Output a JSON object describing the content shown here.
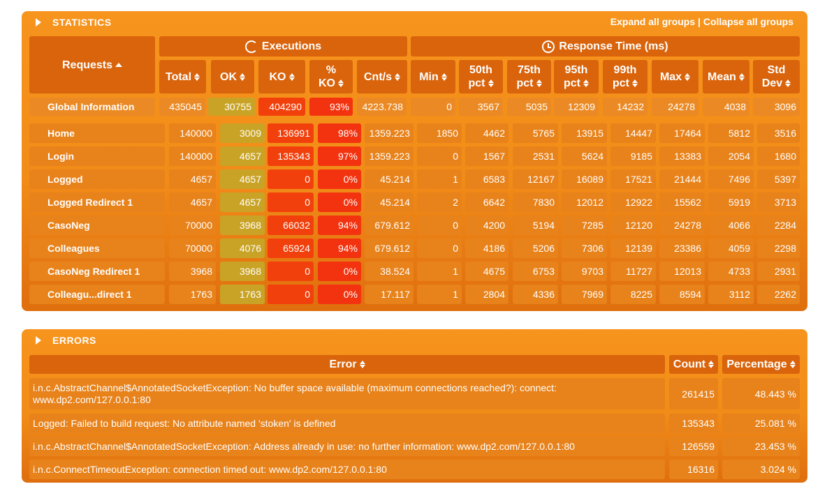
{
  "statistics": {
    "title": "STATISTICS",
    "expand_all": "Expand all groups",
    "separator": "|",
    "collapse_all": "Collapse all groups",
    "requests_header": "Requests",
    "executions_header": "Executions",
    "response_time_header": "Response Time (ms)",
    "columns": {
      "total": "Total",
      "ok": "OK",
      "ko": "KO",
      "pct_ko_1": "%",
      "pct_ko_2": "KO",
      "cnt": "Cnt/s",
      "min": "Min",
      "p50_1": "50th",
      "p50_2": "pct",
      "p75_1": "75th",
      "p75_2": "pct",
      "p95_1": "95th",
      "p95_2": "pct",
      "p99_1": "99th",
      "p99_2": "pct",
      "max": "Max",
      "mean": "Mean",
      "std_1": "Std",
      "std_2": "Dev"
    },
    "global": {
      "name": "Global Information",
      "total": "435045",
      "ok": "30755",
      "ko": "404290",
      "pct_ko": "93%",
      "cnt": "4223.738",
      "min": "0",
      "p50": "3567",
      "p75": "5035",
      "p95": "12309",
      "p99": "14232",
      "max": "24278",
      "mean": "4038",
      "std": "3096"
    },
    "rows": [
      {
        "name": "Home",
        "total": "140000",
        "ok": "3009",
        "ko": "136991",
        "pct_ko": "98%",
        "cnt": "1359.223",
        "min": "1850",
        "p50": "4462",
        "p75": "5765",
        "p95": "13915",
        "p99": "14447",
        "max": "17464",
        "mean": "5812",
        "std": "3516"
      },
      {
        "name": "Login",
        "total": "140000",
        "ok": "4657",
        "ko": "135343",
        "pct_ko": "97%",
        "cnt": "1359.223",
        "min": "0",
        "p50": "1567",
        "p75": "2531",
        "p95": "5624",
        "p99": "9185",
        "max": "13383",
        "mean": "2054",
        "std": "1680"
      },
      {
        "name": "Logged",
        "total": "4657",
        "ok": "4657",
        "ko": "0",
        "pct_ko": "0%",
        "cnt": "45.214",
        "min": "1",
        "p50": "6583",
        "p75": "12167",
        "p95": "16089",
        "p99": "17521",
        "max": "21444",
        "mean": "7496",
        "std": "5397"
      },
      {
        "name": "Logged Redirect 1",
        "total": "4657",
        "ok": "4657",
        "ko": "0",
        "pct_ko": "0%",
        "cnt": "45.214",
        "min": "2",
        "p50": "6642",
        "p75": "7830",
        "p95": "12012",
        "p99": "12922",
        "max": "15562",
        "mean": "5919",
        "std": "3713"
      },
      {
        "name": "CasoNeg",
        "total": "70000",
        "ok": "3968",
        "ko": "66032",
        "pct_ko": "94%",
        "cnt": "679.612",
        "min": "0",
        "p50": "4200",
        "p75": "5194",
        "p95": "7285",
        "p99": "12120",
        "max": "24278",
        "mean": "4066",
        "std": "2284"
      },
      {
        "name": "Colleagues",
        "total": "70000",
        "ok": "4076",
        "ko": "65924",
        "pct_ko": "94%",
        "cnt": "679.612",
        "min": "0",
        "p50": "4186",
        "p75": "5206",
        "p95": "7306",
        "p99": "12139",
        "max": "23386",
        "mean": "4059",
        "std": "2298"
      },
      {
        "name": "CasoNeg Redirect 1",
        "total": "3968",
        "ok": "3968",
        "ko": "0",
        "pct_ko": "0%",
        "cnt": "38.524",
        "min": "1",
        "p50": "4675",
        "p75": "6753",
        "p95": "9703",
        "p99": "11727",
        "max": "12013",
        "mean": "4733",
        "std": "2931"
      },
      {
        "name": "Colleagu...direct 1",
        "total": "1763",
        "ok": "1763",
        "ko": "0",
        "pct_ko": "0%",
        "cnt": "17.117",
        "min": "1",
        "p50": "2804",
        "p75": "4336",
        "p95": "7969",
        "p99": "8225",
        "max": "8594",
        "mean": "3112",
        "std": "2262"
      }
    ]
  },
  "errors": {
    "title": "ERRORS",
    "error_header": "Error",
    "count_header": "Count",
    "percentage_header": "Percentage",
    "rows": [
      {
        "message": "i.n.c.AbstractChannel$AnnotatedSocketException: No buffer space available (maximum connections reached?): connect: www.dp2.com/127.0.0.1:80",
        "count": "261415",
        "percentage": "48.443 %"
      },
      {
        "message": "Logged: Failed to build request: No attribute named 'stoken' is defined",
        "count": "135343",
        "percentage": "25.081 %"
      },
      {
        "message": "i.n.c.AbstractChannel$AnnotatedSocketException: Address already in use: no further information: www.dp2.com/127.0.0.1:80",
        "count": "126559",
        "percentage": "23.453 %"
      },
      {
        "message": "i.n.c.ConnectTimeoutException: connection timed out: www.dp2.com/127.0.0.1:80",
        "count": "16316",
        "percentage": "3.024 %"
      }
    ]
  }
}
